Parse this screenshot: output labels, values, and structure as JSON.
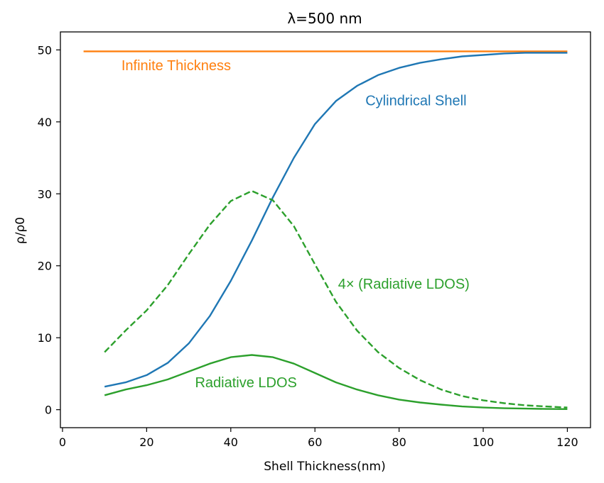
{
  "chart_data": {
    "type": "line",
    "title": "λ=500 nm",
    "xlabel": "Shell Thickness(nm)",
    "ylabel": "ρ/ρ0",
    "xlim": [
      -0.5,
      125.5
    ],
    "ylim": [
      -2.5,
      52.5
    ],
    "xticks": [
      0,
      20,
      40,
      60,
      80,
      100,
      120
    ],
    "yticks": [
      0,
      10,
      20,
      30,
      40,
      50
    ],
    "grid": false,
    "colors": {
      "orange": "#ff7f0e",
      "blue": "#1f77b4",
      "green": "#2ca02c"
    },
    "series": [
      {
        "color": "#ff7f0e",
        "style": "solid",
        "x": [
          5,
          120
        ],
        "y": [
          49.8,
          49.8
        ]
      },
      {
        "color": "#1f77b4",
        "style": "solid",
        "x": [
          10,
          15,
          20,
          25,
          30,
          35,
          40,
          45,
          50,
          55,
          60,
          65,
          70,
          75,
          80,
          85,
          90,
          95,
          100,
          105,
          110,
          115,
          120
        ],
        "y": [
          3.2,
          3.8,
          4.8,
          6.5,
          9.2,
          13,
          17.9,
          23.5,
          29.5,
          35,
          39.7,
          42.9,
          45,
          46.5,
          47.5,
          48.2,
          48.7,
          49.1,
          49.3,
          49.5,
          49.6,
          49.6,
          49.6
        ]
      },
      {
        "color": "#2ca02c",
        "style": "dashed",
        "x": [
          10,
          15,
          20,
          25,
          30,
          35,
          40,
          45,
          50,
          55,
          60,
          65,
          70,
          75,
          80,
          85,
          90,
          95,
          100,
          105,
          110,
          115,
          120
        ],
        "y": [
          8,
          11,
          13.8,
          17.3,
          21.6,
          25.7,
          29,
          30.4,
          29.1,
          25.5,
          20.2,
          15,
          11,
          8,
          5.8,
          4.1,
          2.8,
          1.9,
          1.3,
          0.9,
          0.6,
          0.45,
          0.3
        ]
      },
      {
        "color": "#2ca02c",
        "style": "solid",
        "x": [
          10,
          15,
          20,
          25,
          30,
          35,
          40,
          45,
          50,
          55,
          60,
          65,
          70,
          75,
          80,
          85,
          90,
          95,
          100,
          105,
          110,
          115,
          120
        ],
        "y": [
          2,
          2.8,
          3.4,
          4.2,
          5.3,
          6.4,
          7.3,
          7.6,
          7.3,
          6.4,
          5.1,
          3.8,
          2.8,
          2,
          1.4,
          1,
          0.7,
          0.45,
          0.3,
          0.2,
          0.15,
          0.1,
          0.08
        ]
      }
    ],
    "annotations": [
      {
        "text": "Infinite Thickness",
        "x": 14,
        "y": 47.2,
        "color": "#ff7f0e"
      },
      {
        "text": "Cylindrical Shell",
        "x": 72,
        "y": 42.3,
        "color": "#1f77b4"
      },
      {
        "text": "4× (Radiative LDOS)",
        "x": 65.5,
        "y": 16.8,
        "color": "#2ca02c"
      },
      {
        "text": "Radiative LDOS",
        "x": 31.5,
        "y": 3.1,
        "color": "#2ca02c"
      }
    ]
  }
}
